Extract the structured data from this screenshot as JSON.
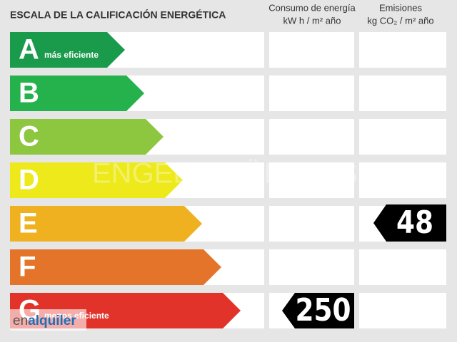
{
  "header": {
    "title": "ESCALA DE LA CALIFICACIÓN ENERGÉTICA",
    "consumo": {
      "title": "Consumo de energía",
      "unit": "kW h  / m² año"
    },
    "emisiones": {
      "title": "Emisiones",
      "unit": "kg CO₂  / m² año"
    }
  },
  "rows": [
    {
      "letter": "A",
      "label": "más eficiente",
      "color": "#1a9b4b"
    },
    {
      "letter": "B",
      "color": "#25b14b"
    },
    {
      "letter": "C",
      "color": "#8dc63f"
    },
    {
      "letter": "D",
      "color": "#ede91a"
    },
    {
      "letter": "E",
      "color": "#efb11f",
      "emisiones": 48
    },
    {
      "letter": "F",
      "color": "#e4742a"
    },
    {
      "letter": "G",
      "label": "menos eficiente",
      "color": "#e2332b",
      "consumo": 250
    }
  ],
  "watermark": "ENGEL & VÖLKERS",
  "logo": {
    "prefix": "en",
    "name": "alquiler"
  }
}
